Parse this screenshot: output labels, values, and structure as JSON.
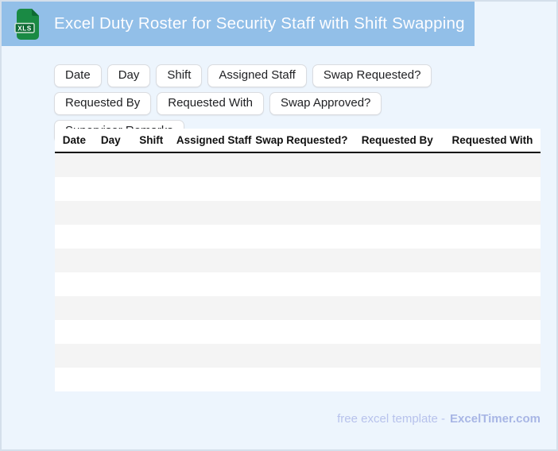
{
  "banner": {
    "title": "Excel Duty Roster for Security Staff with Shift Swapping",
    "file_icon_label": "XLS"
  },
  "chips": [
    "Date",
    "Day",
    "Shift",
    "Assigned Staff",
    "Swap Requested?",
    "Requested By",
    "Requested With",
    "Swap Approved?",
    "Supervisor Remarks"
  ],
  "table": {
    "columns": [
      "Date",
      "Day",
      "Shift",
      "Assigned Staff",
      "Swap Requested?",
      "Requested By",
      "Requested With"
    ],
    "column_widths_pct": [
      8,
      7,
      9.7,
      16.1,
      20,
      19.4,
      19.8
    ],
    "row_count": 10,
    "rows": []
  },
  "footer": {
    "prefix": "free excel template -",
    "brand": "ExcelTimer.com"
  },
  "colors": {
    "banner_bg": "#92bfe8",
    "page_bg": "#edf5fd",
    "page_border": "#d4dfeb",
    "row_stripe": "#f4f4f4",
    "icon_green": "#1a8a44",
    "icon_dark": "#0e6a33",
    "footer_text": "#b7c2ec",
    "footer_brand": "#a8b6e5"
  }
}
